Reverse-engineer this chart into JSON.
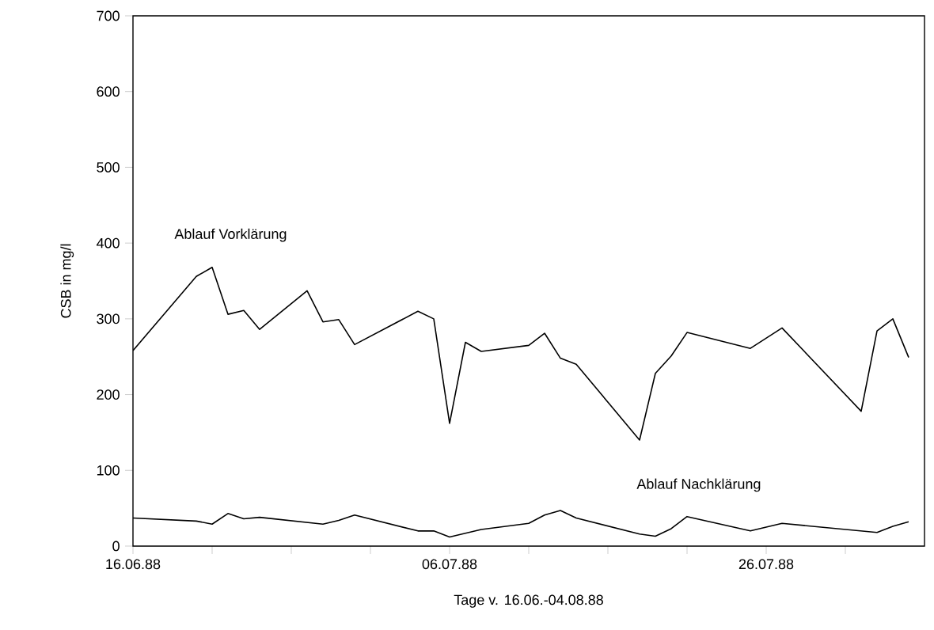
{
  "chart_data": {
    "type": "line",
    "xlabel": "Tage v. 16.06.-04.08.88",
    "ylabel": "CSB      in mg/l",
    "xlim": [
      "1988-06-16",
      "1988-08-05"
    ],
    "xticks": [
      {
        "value": "1988-06-16",
        "label": "16.06.88"
      },
      {
        "value": "1988-06-21",
        "label": null
      },
      {
        "value": "1988-06-26",
        "label": null
      },
      {
        "value": "1988-07-01",
        "label": null
      },
      {
        "value": "1988-07-06",
        "label": "06.07.88"
      },
      {
        "value": "1988-07-11",
        "label": null
      },
      {
        "value": "1988-07-16",
        "label": null
      },
      {
        "value": "1988-07-21",
        "label": null
      },
      {
        "value": "1988-07-26",
        "label": "26.07.88"
      },
      {
        "value": "1988-07-31",
        "label": null
      }
    ],
    "ylim": [
      0,
      700
    ],
    "yticks": [
      0,
      100,
      200,
      300,
      400,
      500,
      600,
      700
    ],
    "grid": false,
    "legend": false,
    "marker": "none",
    "line_style": "solid",
    "series": [
      {
        "name": "Ablauf Vorklärung",
        "color": "#000000",
        "x": [
          "1988-06-16",
          "1988-06-20",
          "1988-06-21",
          "1988-06-22",
          "1988-06-23",
          "1988-06-24",
          "1988-06-27",
          "1988-06-28",
          "1988-06-29",
          "1988-06-30",
          "1988-07-04",
          "1988-07-05",
          "1988-07-06",
          "1988-07-07",
          "1988-07-08",
          "1988-07-11",
          "1988-07-12",
          "1988-07-13",
          "1988-07-14",
          "1988-07-18",
          "1988-07-19",
          "1988-07-20",
          "1988-07-21",
          "1988-07-25",
          "1988-07-27",
          "1988-08-01",
          "1988-08-02",
          "1988-08-03",
          "1988-08-04"
        ],
        "values": [
          258,
          356,
          368,
          306,
          311,
          286,
          337,
          296,
          299,
          266,
          310,
          300,
          162,
          269,
          257,
          265,
          281,
          248,
          240,
          140,
          228,
          251,
          282,
          261,
          288,
          178,
          284,
          300,
          249
        ]
      },
      {
        "name": "Ablauf Nachklärung",
        "color": "#000000",
        "x": [
          "1988-06-16",
          "1988-06-20",
          "1988-06-21",
          "1988-06-22",
          "1988-06-23",
          "1988-06-24",
          "1988-06-28",
          "1988-06-29",
          "1988-06-30",
          "1988-07-04",
          "1988-07-05",
          "1988-07-06",
          "1988-07-08",
          "1988-07-11",
          "1988-07-12",
          "1988-07-13",
          "1988-07-14",
          "1988-07-18",
          "1988-07-19",
          "1988-07-20",
          "1988-07-21",
          "1988-07-25",
          "1988-07-27",
          "1988-08-02",
          "1988-08-03",
          "1988-08-04"
        ],
        "values": [
          37,
          33,
          29,
          43,
          36,
          38,
          29,
          34,
          41,
          20,
          20,
          12,
          22,
          30,
          41,
          47,
          37,
          16,
          13,
          23,
          39,
          20,
          30,
          18,
          26,
          32
        ]
      }
    ]
  }
}
